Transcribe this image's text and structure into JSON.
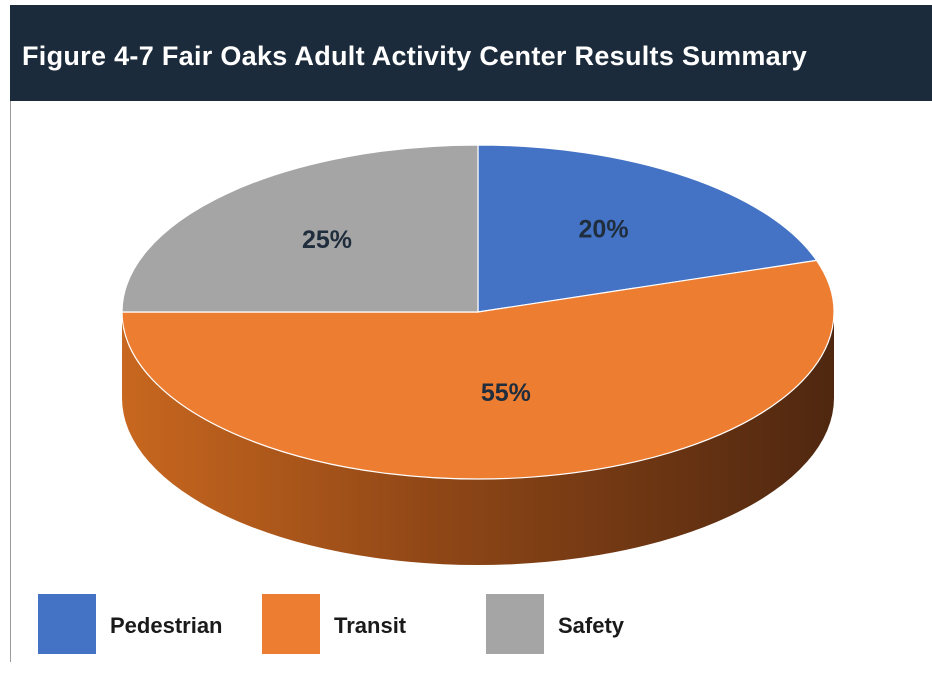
{
  "chart_data": {
    "type": "pie",
    "title": "Figure 4-7 Fair Oaks Adult Activity Center Results Summary",
    "categories": [
      "Pedestrian",
      "Transit",
      "Safety"
    ],
    "values": [
      20,
      55,
      25
    ],
    "value_labels": [
      "20%",
      "55%",
      "25%"
    ],
    "colors": [
      "#4472c4",
      "#ed7d31",
      "#a5a5a5"
    ],
    "legend": "bottom"
  }
}
